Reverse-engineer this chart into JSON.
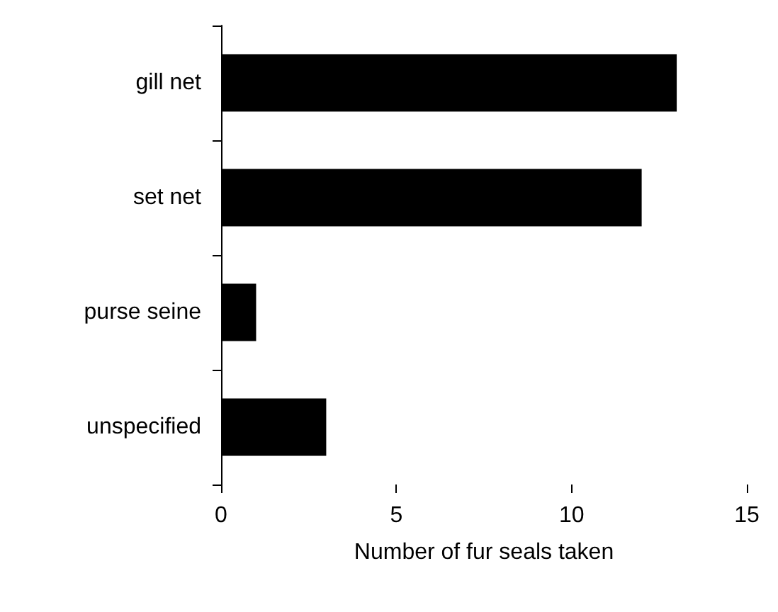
{
  "chart_data": {
    "type": "bar",
    "orientation": "horizontal",
    "xlabel": "Number of fur seals taken",
    "categories": [
      "gill net",
      "set net",
      "purse seine",
      "unspecified"
    ],
    "values": [
      13,
      12,
      1,
      3
    ],
    "color": "#000000",
    "xlim": [
      0,
      15
    ],
    "xticks": [
      0,
      5,
      10,
      15
    ],
    "grid": false
  }
}
